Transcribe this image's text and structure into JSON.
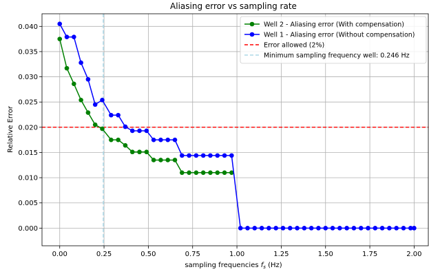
{
  "chart_data": {
    "type": "line",
    "title": "Aliasing error vs sampling rate",
    "xlabel": "sampling frequencies",
    "xlabel_symbol": "f",
    "xlabel_subscript": "s",
    "xlabel_unit": "(Hz)",
    "ylabel": "Relative Error",
    "xlim": [
      -0.1,
      2.08
    ],
    "ylim": [
      -0.0035,
      0.0425
    ],
    "grid": true,
    "legend_position": "top-right",
    "x_ticks": [
      0.0,
      0.25,
      0.5,
      0.75,
      1.0,
      1.25,
      1.5,
      1.75,
      2.0
    ],
    "x_tick_labels": [
      "0.00",
      "0.25",
      "0.50",
      "0.75",
      "1.00",
      "1.25",
      "1.50",
      "1.75",
      "2.00"
    ],
    "y_ticks": [
      0.0,
      0.005,
      0.01,
      0.015,
      0.02,
      0.025,
      0.03,
      0.035,
      0.04
    ],
    "y_tick_labels": [
      "0.000",
      "0.005",
      "0.010",
      "0.015",
      "0.020",
      "0.025",
      "0.030",
      "0.035",
      "0.040"
    ],
    "series": [
      {
        "name": "Well 2 - Aliasing error (With compensation)",
        "color": "#008000",
        "x": [
          0.0,
          0.04,
          0.08,
          0.12,
          0.16,
          0.2,
          0.24,
          0.29,
          0.33,
          0.37,
          0.41,
          0.45,
          0.49,
          0.53,
          0.57,
          0.61,
          0.65,
          0.69,
          0.73,
          0.77,
          0.81,
          0.85,
          0.89,
          0.93,
          0.97
        ],
        "y": [
          0.0375,
          0.0317,
          0.0286,
          0.0254,
          0.0229,
          0.0205,
          0.0197,
          0.0175,
          0.0175,
          0.0164,
          0.0151,
          0.0151,
          0.0151,
          0.0135,
          0.0135,
          0.0135,
          0.0135,
          0.011,
          0.011,
          0.011,
          0.011,
          0.011,
          0.011,
          0.011,
          0.011
        ]
      },
      {
        "name": "Well 1 - Aliasing error (Without compensation)",
        "color": "#0000ff",
        "x": [
          0.0,
          0.04,
          0.08,
          0.12,
          0.16,
          0.2,
          0.24,
          0.29,
          0.33,
          0.37,
          0.41,
          0.45,
          0.49,
          0.53,
          0.57,
          0.61,
          0.65,
          0.69,
          0.73,
          0.77,
          0.81,
          0.85,
          0.89,
          0.93,
          0.97,
          1.02,
          1.06,
          1.1,
          1.14,
          1.18,
          1.22,
          1.26,
          1.3,
          1.34,
          1.38,
          1.42,
          1.46,
          1.5,
          1.54,
          1.58,
          1.62,
          1.66,
          1.7,
          1.74,
          1.78,
          1.82,
          1.86,
          1.9,
          1.94,
          1.98,
          2.0
        ],
        "y": [
          0.0405,
          0.0379,
          0.0379,
          0.0328,
          0.0295,
          0.0245,
          0.0254,
          0.0224,
          0.0224,
          0.0201,
          0.0193,
          0.0193,
          0.0193,
          0.0175,
          0.0175,
          0.0175,
          0.0175,
          0.0144,
          0.0144,
          0.0144,
          0.0144,
          0.0144,
          0.0144,
          0.0144,
          0.0144,
          0.0,
          0.0,
          0.0,
          0.0,
          0.0,
          0.0,
          0.0,
          0.0,
          0.0,
          0.0,
          0.0,
          0.0,
          0.0,
          0.0,
          0.0,
          0.0,
          0.0,
          0.0,
          0.0,
          0.0,
          0.0,
          0.0,
          0.0,
          0.0,
          0.0,
          0.0
        ]
      }
    ],
    "reference_lines": [
      {
        "name": "Error allowed (2%)",
        "orientation": "horizontal",
        "value": 0.02,
        "color": "#ff0000",
        "style": "dashed"
      },
      {
        "name": "Minimum sampling frequency well: 0.246 Hz",
        "orientation": "vertical",
        "value": 0.246,
        "color": "#add8e6",
        "style": "dashed"
      }
    ]
  }
}
